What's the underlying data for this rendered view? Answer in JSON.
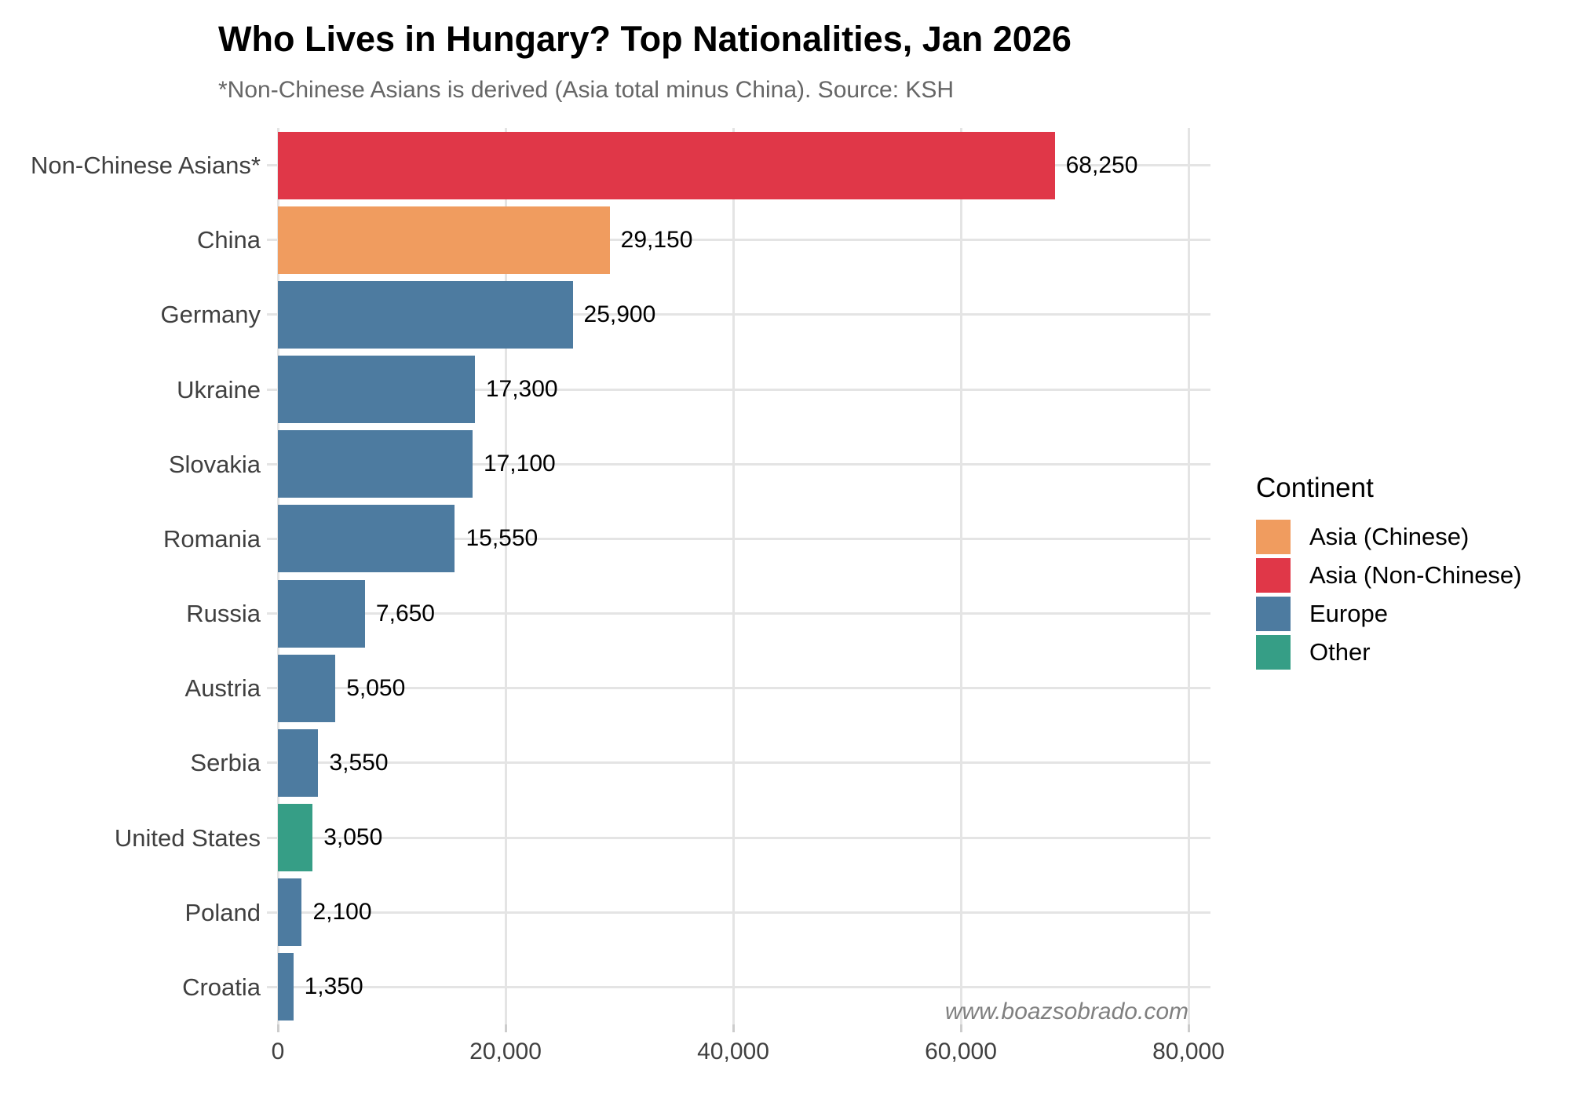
{
  "chart_data": {
    "type": "bar",
    "orientation": "horizontal",
    "title": "Who Lives in Hungary? Top Nationalities, Jan 2026",
    "subtitle": "*Non-Chinese Asians is derived (Asia total minus China). Source: KSH",
    "watermark": "www.boazsobrado.com",
    "categories": [
      "Non-Chinese Asians*",
      "China",
      "Germany",
      "Ukraine",
      "Slovakia",
      "Romania",
      "Russia",
      "Austria",
      "Serbia",
      "United States",
      "Poland",
      "Croatia"
    ],
    "bars": [
      {
        "slug": "non-chinese-asians",
        "category": "Non-Chinese Asians*",
        "value": 68250,
        "value_label": "68,250",
        "continent": "Asia (Non-Chinese)"
      },
      {
        "slug": "china",
        "category": "China",
        "value": 29150,
        "value_label": "29,150",
        "continent": "Asia (Chinese)"
      },
      {
        "slug": "germany",
        "category": "Germany",
        "value": 25900,
        "value_label": "25,900",
        "continent": "Europe"
      },
      {
        "slug": "ukraine",
        "category": "Ukraine",
        "value": 17300,
        "value_label": "17,300",
        "continent": "Europe"
      },
      {
        "slug": "slovakia",
        "category": "Slovakia",
        "value": 17100,
        "value_label": "17,100",
        "continent": "Europe"
      },
      {
        "slug": "romania",
        "category": "Romania",
        "value": 15550,
        "value_label": "15,550",
        "continent": "Europe"
      },
      {
        "slug": "russia",
        "category": "Russia",
        "value": 7650,
        "value_label": "7,650",
        "continent": "Europe"
      },
      {
        "slug": "austria",
        "category": "Austria",
        "value": 5050,
        "value_label": "5,050",
        "continent": "Europe"
      },
      {
        "slug": "serbia",
        "category": "Serbia",
        "value": 3550,
        "value_label": "3,550",
        "continent": "Europe"
      },
      {
        "slug": "united-states",
        "category": "United States",
        "value": 3050,
        "value_label": "3,050",
        "continent": "Other"
      },
      {
        "slug": "poland",
        "category": "Poland",
        "value": 2100,
        "value_label": "2,100",
        "continent": "Europe"
      },
      {
        "slug": "croatia",
        "category": "Croatia",
        "value": 1350,
        "value_label": "1,350",
        "continent": "Europe"
      }
    ],
    "palette": {
      "Asia (Chinese)": "#F09C5F",
      "Asia (Non-Chinese)": "#E03748",
      "Europe": "#4D7BA0",
      "Other": "#369E86"
    },
    "x_axis": {
      "tick_values": [
        0,
        20000,
        40000,
        60000,
        80000
      ],
      "tick_labels": [
        "0",
        "20,000",
        "40,000",
        "60,000",
        "80,000"
      ],
      "xlim": [
        0,
        81860
      ]
    },
    "grid": true,
    "legend": {
      "position": "right",
      "title": "Continent",
      "entries": [
        {
          "label": "Asia (Chinese)",
          "color": "#F09C5F"
        },
        {
          "label": "Asia (Non-Chinese)",
          "color": "#E03748"
        },
        {
          "label": "Europe",
          "color": "#4D7BA0"
        },
        {
          "label": "Other",
          "color": "#369E86"
        }
      ]
    }
  }
}
